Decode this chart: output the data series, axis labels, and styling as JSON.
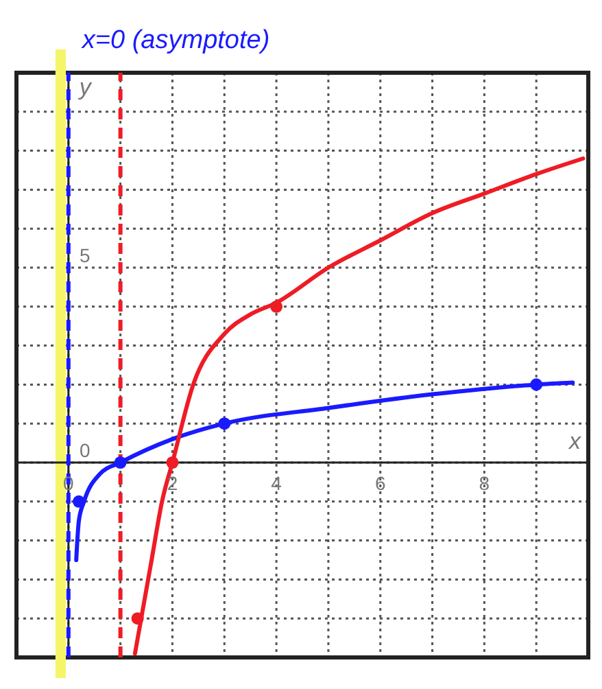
{
  "chart_data": {
    "type": "line",
    "xlabel": "x",
    "ylabel": "y",
    "xlim": [
      -1,
      10
    ],
    "ylim": [
      -5,
      10
    ],
    "xticks": [
      0,
      {
        "value": 1,
        "label": null
      },
      2,
      {
        "value": 3,
        "label": null
      },
      4,
      {
        "value": 5,
        "label": null
      },
      6,
      {
        "value": 7,
        "label": null
      },
      8,
      {
        "value": 9,
        "label": null
      }
    ],
    "yticks": [
      {
        "value": -4,
        "label": null
      },
      {
        "value": -3,
        "label": null
      },
      {
        "value": -2,
        "label": null
      },
      {
        "value": -1,
        "label": null
      },
      0,
      {
        "value": 1,
        "label": null
      },
      {
        "value": 2,
        "label": null
      },
      {
        "value": 3,
        "label": null
      },
      {
        "value": 4,
        "label": null
      },
      5,
      {
        "value": 6,
        "label": null
      },
      {
        "value": 7,
        "label": null
      },
      {
        "value": 8,
        "label": null
      },
      {
        "value": 9,
        "label": null
      }
    ],
    "grid": true,
    "legend": false,
    "series": [
      {
        "color": "#1a1aff",
        "marker": "none",
        "line_style": "solid",
        "x": [
          0.15,
          0.2,
          0.3,
          0.6,
          1,
          2,
          3,
          5,
          7,
          9,
          9.7
        ],
        "values": [
          -2.5,
          -1.5,
          -1,
          -0.3,
          0,
          0.6,
          1,
          1.4,
          1.75,
          2,
          2.05
        ]
      },
      {
        "color": "#ee1c25",
        "marker": "none",
        "line_style": "solid",
        "x": [
          1.28,
          1.4,
          1.6,
          1.8,
          2,
          2.4,
          3,
          3.5,
          4,
          5,
          6,
          7,
          8,
          9,
          9.9
        ],
        "values": [
          -4.9,
          -4,
          -2.5,
          -1,
          0,
          2,
          3.3,
          3.8,
          4.1,
          5,
          5.7,
          6.4,
          6.9,
          7.4,
          7.8
        ]
      },
      {
        "type": "scatter",
        "color": "#1a1aff",
        "marker": "circle",
        "x": [
          0.2,
          1,
          3,
          9
        ],
        "values": [
          -1,
          0,
          1,
          2
        ]
      },
      {
        "type": "scatter",
        "color": "#ee1c25",
        "marker": "circle",
        "x": [
          1.33,
          2,
          4
        ],
        "values": [
          -4,
          0,
          4
        ]
      }
    ],
    "bands": [
      {
        "axis": "x",
        "from": -0.25,
        "to": -0.05,
        "color": "#f5f56a"
      }
    ],
    "ref_lines": [
      {
        "axis": "x",
        "value": 0,
        "label": "x=0 (asymptote)",
        "color": "#1a1aff",
        "line_style": "dashed"
      },
      {
        "axis": "x",
        "value": 1,
        "color": "#ee1c25",
        "line_style": "dashed"
      }
    ]
  }
}
